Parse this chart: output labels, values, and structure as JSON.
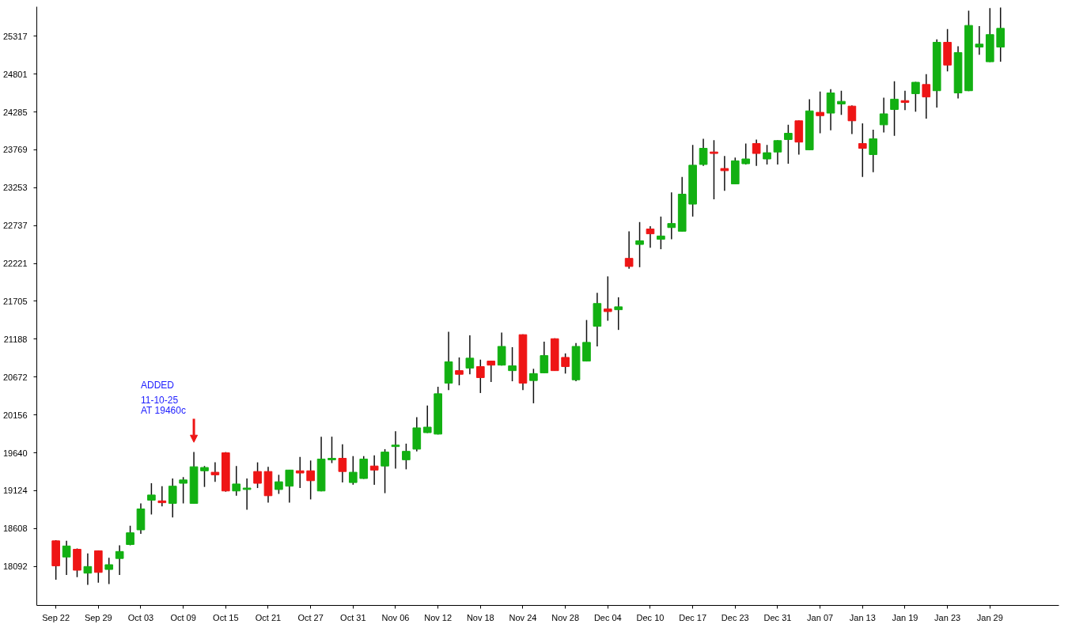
{
  "chart_data": {
    "type": "candlestick",
    "categories": [
      "Sep 22",
      null,
      null,
      null,
      "Sep 29",
      null,
      null,
      null,
      "Oct 03",
      null,
      null,
      null,
      "Oct 09",
      null,
      null,
      null,
      "Oct 15",
      null,
      null,
      null,
      "Oct 21",
      null,
      null,
      null,
      "Oct 27",
      null,
      null,
      null,
      "Oct 31",
      null,
      null,
      null,
      "Nov 06",
      null,
      null,
      null,
      "Nov 12",
      null,
      null,
      null,
      "Nov 18",
      null,
      null,
      null,
      "Nov 24",
      null,
      null,
      null,
      "Nov 28",
      null,
      null,
      null,
      "Dec 04",
      null,
      null,
      null,
      "Dec 10",
      null,
      null,
      null,
      "Dec 17",
      null,
      null,
      null,
      "Dec 23",
      null,
      null,
      null,
      "Dec 31",
      null,
      null,
      null,
      "Jan 07",
      null,
      null,
      null,
      "Jan 13",
      null,
      null,
      null,
      "Jan 19",
      null,
      null,
      null,
      "Jan 23",
      null,
      null,
      null,
      "Jan 29",
      null
    ],
    "ohlc": [
      [
        18440,
        18450,
        17910,
        18100
      ],
      [
        18220,
        18440,
        17975,
        18370
      ],
      [
        18325,
        18335,
        17945,
        18040
      ],
      [
        18000,
        18270,
        17840,
        18090
      ],
      [
        18305,
        18310,
        17870,
        18010
      ],
      [
        18050,
        18210,
        17850,
        18115
      ],
      [
        18200,
        18380,
        17975,
        18295
      ],
      [
        18390,
        18645,
        18380,
        18550
      ],
      [
        18590,
        18950,
        18535,
        18875
      ],
      [
        18995,
        19225,
        18800,
        19065
      ],
      [
        18985,
        19185,
        18910,
        18960
      ],
      [
        18950,
        19290,
        18760,
        19185
      ],
      [
        19225,
        19310,
        18950,
        19270
      ],
      [
        18950,
        19650,
        18945,
        19450
      ],
      [
        19395,
        19460,
        19175,
        19440
      ],
      [
        19375,
        19510,
        19245,
        19340
      ],
      [
        19640,
        19650,
        19110,
        19120
      ],
      [
        19120,
        19460,
        19055,
        19215
      ],
      [
        19140,
        19290,
        18865,
        19160
      ],
      [
        19385,
        19510,
        19160,
        19225
      ],
      [
        19385,
        19450,
        18960,
        19055
      ],
      [
        19140,
        19340,
        19080,
        19245
      ],
      [
        19185,
        19410,
        18960,
        19405
      ],
      [
        19395,
        19585,
        19160,
        19365
      ],
      [
        19395,
        19535,
        19005,
        19260
      ],
      [
        19120,
        19860,
        19115,
        19555
      ],
      [
        19545,
        19860,
        19500,
        19565
      ],
      [
        19565,
        19755,
        19235,
        19385
      ],
      [
        19235,
        19595,
        19205,
        19375
      ],
      [
        19290,
        19595,
        19285,
        19555
      ],
      [
        19460,
        19605,
        19205,
        19405
      ],
      [
        19460,
        19690,
        19090,
        19650
      ],
      [
        19725,
        19935,
        19425,
        19745
      ],
      [
        19545,
        19765,
        19415,
        19660
      ],
      [
        19690,
        20125,
        19660,
        19980
      ],
      [
        19915,
        20285,
        19910,
        19990
      ],
      [
        19895,
        20540,
        19890,
        20445
      ],
      [
        20590,
        21290,
        20495,
        20880
      ],
      [
        20760,
        20940,
        20560,
        20710
      ],
      [
        20795,
        21240,
        20710,
        20930
      ],
      [
        20815,
        20910,
        20455,
        20665
      ],
      [
        20890,
        20895,
        20605,
        20835
      ],
      [
        20835,
        21280,
        20830,
        21090
      ],
      [
        20760,
        21080,
        20615,
        20825
      ],
      [
        21250,
        21255,
        20495,
        20590
      ],
      [
        20625,
        20785,
        20315,
        20720
      ],
      [
        20730,
        21155,
        20725,
        20965
      ],
      [
        21195,
        21200,
        20755,
        20760
      ],
      [
        20940,
        20995,
        20720,
        20815
      ],
      [
        20635,
        21135,
        20615,
        21090
      ],
      [
        20890,
        21450,
        20885,
        21145
      ],
      [
        21365,
        21820,
        21090,
        21675
      ],
      [
        21600,
        22045,
        21440,
        21565
      ],
      [
        21590,
        21760,
        21315,
        21630
      ],
      [
        22290,
        22660,
        22150,
        22180
      ],
      [
        22480,
        22785,
        22170,
        22530
      ],
      [
        22690,
        22730,
        22435,
        22625
      ],
      [
        22550,
        22860,
        22415,
        22595
      ],
      [
        22710,
        23190,
        22550,
        22765
      ],
      [
        22660,
        23400,
        22655,
        23165
      ],
      [
        23030,
        23835,
        22860,
        23560
      ],
      [
        23570,
        23920,
        23550,
        23790
      ],
      [
        23740,
        23900,
        23095,
        23720
      ],
      [
        23515,
        23685,
        23210,
        23485
      ],
      [
        23305,
        23665,
        23300,
        23620
      ],
      [
        23580,
        23855,
        23570,
        23645
      ],
      [
        23855,
        23910,
        23550,
        23720
      ],
      [
        23645,
        23835,
        23570,
        23730
      ],
      [
        23740,
        23900,
        23570,
        23895
      ],
      [
        23910,
        24110,
        23580,
        23995
      ],
      [
        24165,
        24170,
        23705,
        23875
      ],
      [
        23770,
        24460,
        23765,
        24300
      ],
      [
        24280,
        24565,
        23995,
        24235
      ],
      [
        24270,
        24595,
        24035,
        24545
      ],
      [
        24395,
        24575,
        24245,
        24430
      ],
      [
        24365,
        24375,
        23985,
        24165
      ],
      [
        23855,
        24130,
        23400,
        23790
      ],
      [
        23705,
        24045,
        23465,
        23920
      ],
      [
        24110,
        24480,
        24005,
        24260
      ],
      [
        24320,
        24705,
        23960,
        24460
      ],
      [
        24440,
        24575,
        24310,
        24415
      ],
      [
        24535,
        24695,
        24290,
        24690
      ],
      [
        24660,
        24800,
        24195,
        24490
      ],
      [
        24575,
        25275,
        24345,
        25235
      ],
      [
        25235,
        25415,
        24840,
        24925
      ],
      [
        24545,
        25180,
        24470,
        25095
      ],
      [
        24575,
        25665,
        24570,
        25465
      ],
      [
        25170,
        25455,
        25065,
        25210
      ],
      [
        24970,
        25700,
        24965,
        25340
      ],
      [
        25170,
        25710,
        24970,
        25425
      ]
    ],
    "colors": [
      "#ee1515",
      "#12b012",
      "#ee1515",
      "#12b012",
      "#ee1515",
      "#12b012",
      "#12b012",
      "#12b012",
      "#12b012",
      "#12b012",
      "#ee1515",
      "#12b012",
      "#12b012",
      "#12b012",
      "#12b012",
      "#ee1515",
      "#ee1515",
      "#12b012",
      "#12b012",
      "#ee1515",
      "#ee1515",
      "#12b012",
      "#12b012",
      "#ee1515",
      "#ee1515",
      "#12b012",
      "#12b012",
      "#ee1515",
      "#12b012",
      "#12b012",
      "#ee1515",
      "#12b012",
      "#12b012",
      "#12b012",
      "#12b012",
      "#12b012",
      "#12b012",
      "#12b012",
      "#ee1515",
      "#12b012",
      "#ee1515",
      "#ee1515",
      "#12b012",
      "#12b012",
      "#ee1515",
      "#12b012",
      "#12b012",
      "#ee1515",
      "#ee1515",
      "#12b012",
      "#12b012",
      "#12b012",
      "#ee1515",
      "#12b012",
      "#ee1515",
      "#12b012",
      "#ee1515",
      "#12b012",
      "#12b012",
      "#12b012",
      "#12b012",
      "#12b012",
      "#ee1515",
      "#ee1515",
      "#12b012",
      "#12b012",
      "#ee1515",
      "#12b012",
      "#12b012",
      "#12b012",
      "#ee1515",
      "#12b012",
      "#ee1515",
      "#12b012",
      "#12b012",
      "#ee1515",
      "#ee1515",
      "#12b012",
      "#12b012",
      "#12b012",
      "#ee1515",
      "#12b012",
      "#ee1515",
      "#12b012",
      "#ee1515",
      "#12b012",
      "#12b012",
      "#12b012",
      "#12b012",
      "#12b012"
    ],
    "ylim": [
      17560,
      25720
    ],
    "yticks": [
      18092,
      18608,
      19124,
      19640,
      20156,
      20672,
      21188,
      21705,
      22221,
      22737,
      23253,
      23769,
      24285,
      24801,
      25317
    ],
    "grid": false,
    "annotations": [
      "ADDED\n11-10-25\nAT 19460c"
    ]
  }
}
